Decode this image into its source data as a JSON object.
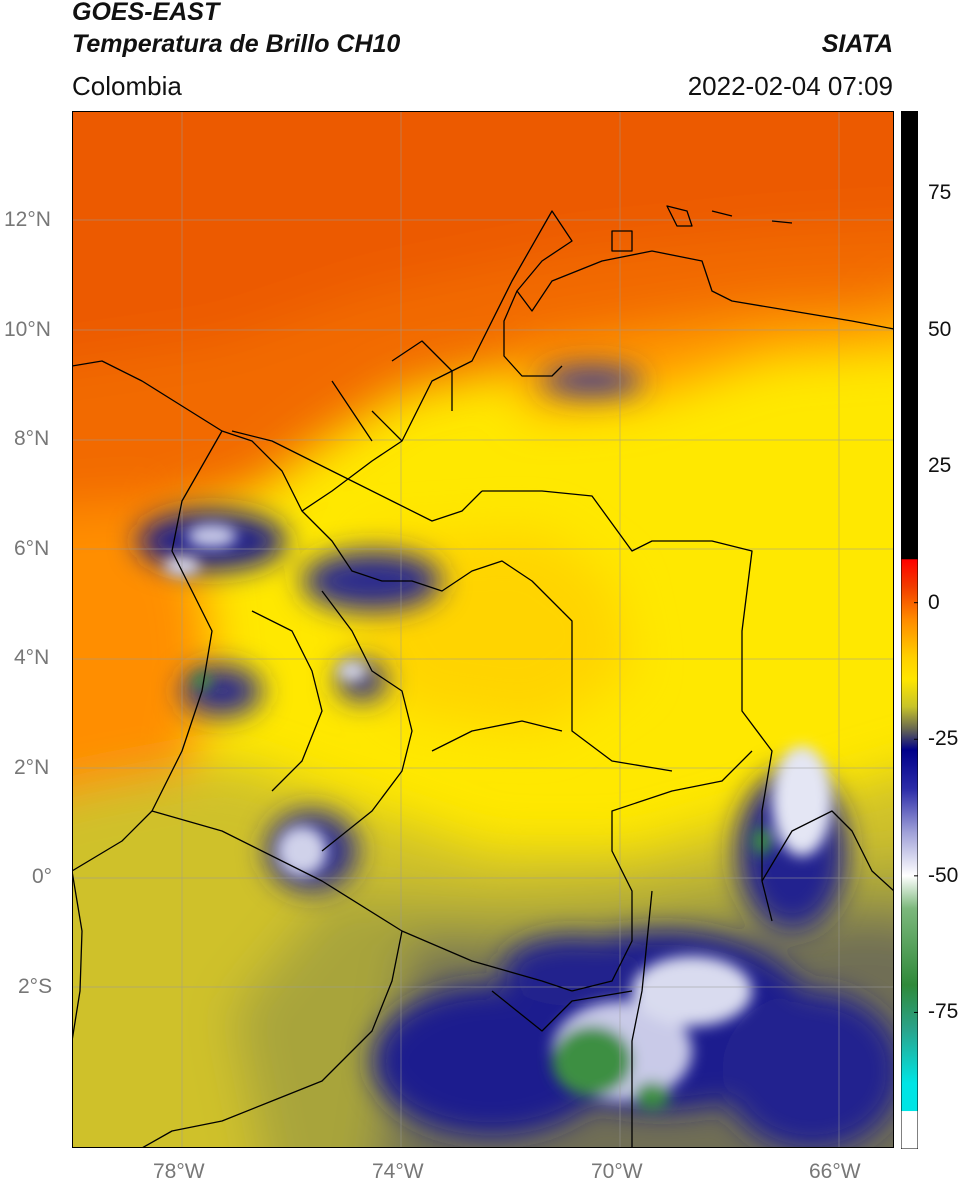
{
  "header": {
    "satellite": "GOES-EAST",
    "product": "Temperatura de Brillo CH10",
    "source": "SIATA",
    "region": "Colombia",
    "datetime": "2022-02-04 07:09"
  },
  "map": {
    "lat_labels": [
      "12°N",
      "10°N",
      "8°N",
      "6°N",
      "4°N",
      "2°N",
      "0°",
      "2°S"
    ],
    "lon_labels": [
      "78°W",
      "74°W",
      "70°W",
      "66°W"
    ],
    "lat_ticks": [
      12,
      10,
      8,
      6,
      4,
      2,
      0,
      -2
    ],
    "lon_ticks": [
      -78,
      -74,
      -70,
      -66
    ],
    "extent": {
      "lon": [
        -80,
        -65
      ],
      "lat": [
        -5,
        14
      ]
    }
  },
  "colorbar": {
    "labels": [
      "75",
      "50",
      "25",
      "0",
      "-25",
      "-50",
      "-75"
    ],
    "values": [
      75,
      50,
      25,
      0,
      -25,
      -50,
      -75
    ],
    "range": [
      -100,
      90
    ],
    "stops": [
      {
        "v": 90,
        "c": "#000000"
      },
      {
        "v": 8,
        "c": "#000000"
      },
      {
        "v": 7.9,
        "c": "#ff0000"
      },
      {
        "v": 3,
        "c": "#f23b00"
      },
      {
        "v": -3,
        "c": "#ff8a00"
      },
      {
        "v": -10,
        "c": "#ffd000"
      },
      {
        "v": -14,
        "c": "#ffe600"
      },
      {
        "v": -19,
        "c": "#c8c428"
      },
      {
        "v": -23,
        "c": "#6b6b50"
      },
      {
        "v": -27,
        "c": "#00008a"
      },
      {
        "v": -34,
        "c": "#2b2ba8"
      },
      {
        "v": -42,
        "c": "#9fa0d8"
      },
      {
        "v": -50,
        "c": "#ffffff"
      },
      {
        "v": -56,
        "c": "#7cb87c"
      },
      {
        "v": -70,
        "c": "#2f8a3a"
      },
      {
        "v": -78,
        "c": "#2aa38a"
      },
      {
        "v": -88,
        "c": "#00e5e5"
      },
      {
        "v": -93,
        "c": "#00e5e5"
      },
      {
        "v": -93.1,
        "c": "#ffffff"
      },
      {
        "v": -100,
        "c": "#ffffff"
      }
    ]
  }
}
